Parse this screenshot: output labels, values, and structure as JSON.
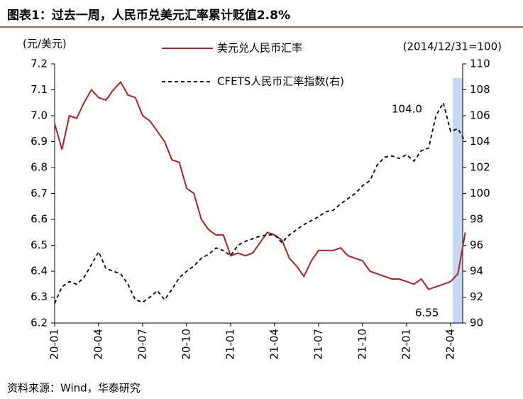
{
  "chart_data": {
    "type": "line",
    "title": "图表1：过去一周，人民币兑美元汇率累计贬值2.8%",
    "y_label": "(元/美元)",
    "y2_label": "(2014/12/31=100)",
    "source": "资料来源：Wind，华泰研究",
    "annotations": [
      {
        "text": "104.0",
        "color": "#000000"
      },
      {
        "text": "6.55",
        "color": "#b22222"
      }
    ],
    "categories": [
      "20-01",
      null,
      null,
      null,
      null,
      null,
      "20-04",
      null,
      null,
      null,
      null,
      null,
      "20-07",
      null,
      null,
      null,
      null,
      null,
      "20-10",
      null,
      null,
      null,
      null,
      null,
      "21-01",
      null,
      null,
      null,
      null,
      null,
      "21-04",
      null,
      null,
      null,
      null,
      null,
      "21-07",
      null,
      null,
      null,
      null,
      null,
      "21-10",
      null,
      null,
      null,
      null,
      null,
      "22-01",
      null,
      null,
      null,
      null,
      null,
      "22-04",
      null,
      null
    ],
    "series": [
      {
        "name": "美元兑人民币汇率",
        "color": "#b22222",
        "dash": false,
        "values": [
          6.97,
          6.87,
          7.0,
          6.99,
          7.05,
          7.1,
          7.07,
          7.06,
          7.1,
          7.13,
          7.08,
          7.07,
          7.0,
          6.98,
          6.94,
          6.9,
          6.83,
          6.82,
          6.72,
          6.7,
          6.6,
          6.56,
          6.54,
          6.54,
          6.46,
          6.47,
          6.46,
          6.47,
          6.51,
          6.55,
          6.54,
          6.52,
          6.45,
          6.42,
          6.38,
          6.44,
          6.48,
          6.48,
          6.48,
          6.49,
          6.46,
          6.45,
          6.44,
          6.4,
          6.39,
          6.38,
          6.37,
          6.37,
          6.36,
          6.35,
          6.37,
          6.33,
          6.34,
          6.35,
          6.36,
          6.39,
          6.55
        ]
      },
      {
        "name": "CFETS人民币汇率指数(右)",
        "color": "#000000",
        "dash": true,
        "axis": "y2",
        "values": [
          91.5,
          92.8,
          93.2,
          93.0,
          93.5,
          94.5,
          95.5,
          94.2,
          94.0,
          93.8,
          93.0,
          91.8,
          91.6,
          92.0,
          92.5,
          91.8,
          92.6,
          93.5,
          94.0,
          94.4,
          95.0,
          95.3,
          95.8,
          95.6,
          95.2,
          96.0,
          96.3,
          96.5,
          96.7,
          96.8,
          96.8,
          96.2,
          96.8,
          97.2,
          97.6,
          97.9,
          98.2,
          98.6,
          98.7,
          99.2,
          99.6,
          100.0,
          100.6,
          101.0,
          102.2,
          102.8,
          102.9,
          102.7,
          103.0,
          102.5,
          103.3,
          103.5,
          106.0,
          107.0,
          104.8,
          105.0,
          104.0
        ]
      }
    ],
    "ylim": [
      6.2,
      7.2
    ],
    "yticks": [
      6.2,
      6.3,
      6.4,
      6.5,
      6.6,
      6.7,
      6.8,
      6.9,
      {
        "value": 7,
        "label": "7.0"
      },
      7.1,
      7.2
    ],
    "y2lim": [
      90,
      110
    ],
    "y2ticks": [
      90,
      92,
      94,
      96,
      98,
      100,
      102,
      104,
      106,
      108,
      110
    ]
  }
}
